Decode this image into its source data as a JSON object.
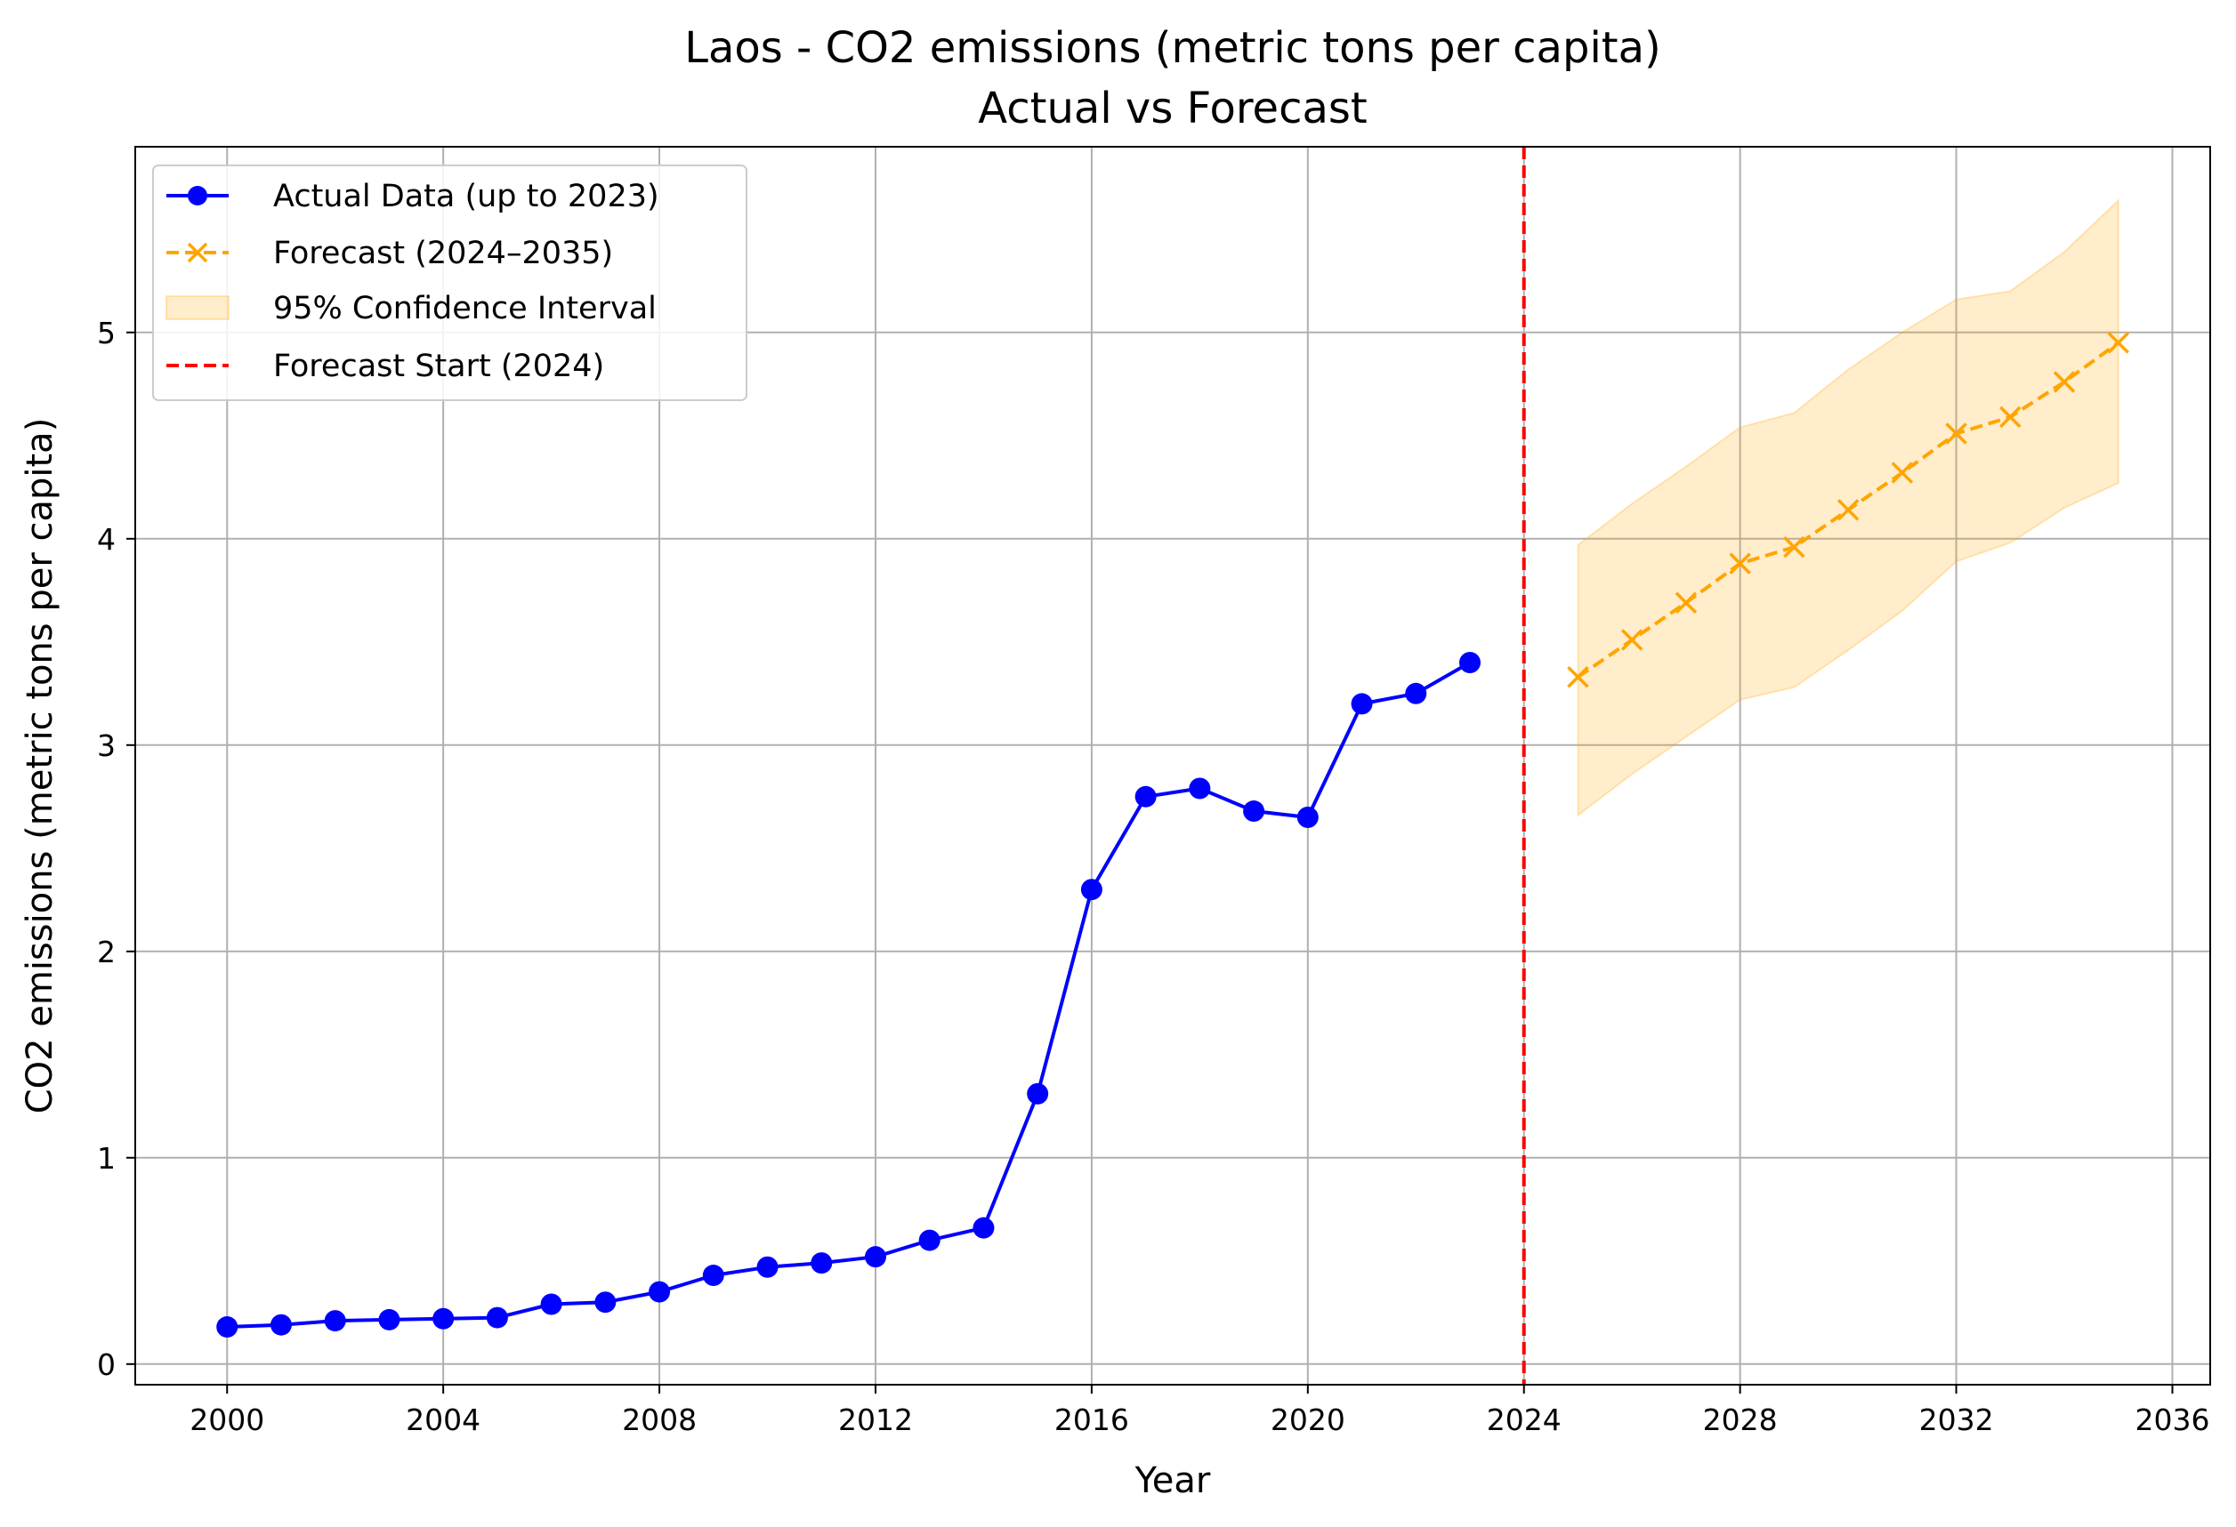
{
  "chart_data": {
    "type": "line",
    "title": "Laos - CO2 emissions (metric tons per capita)",
    "subtitle": "Actual vs Forecast",
    "xlabel": "Year",
    "ylabel": "CO2 emissions (metric tons per capita)",
    "xlim": [
      1998.3,
      2036.7
    ],
    "ylim": [
      -0.1,
      5.9
    ],
    "xticks": [
      "2000",
      "2004",
      "2008",
      "2012",
      "2016",
      "2020",
      "2024",
      "2028",
      "2032",
      "2036"
    ],
    "yticks": [
      "0",
      "1",
      "2",
      "3",
      "4",
      "5"
    ],
    "grid": true,
    "legend_position": "top-left",
    "forecast_start_line": {
      "x": 2024,
      "name": "Forecast Start (2024)",
      "color": "#ff0000"
    },
    "series": [
      {
        "name": "Actual Data (up to 2023)",
        "color": "#0000ff",
        "style": "solid-circle-markers",
        "x": [
          2000,
          2001,
          2002,
          2003,
          2004,
          2005,
          2006,
          2007,
          2008,
          2009,
          2010,
          2011,
          2012,
          2013,
          2014,
          2015,
          2016,
          2017,
          2018,
          2019,
          2020,
          2021,
          2022,
          2023
        ],
        "y": [
          0.18,
          0.19,
          0.21,
          0.215,
          0.22,
          0.225,
          0.29,
          0.3,
          0.35,
          0.43,
          0.47,
          0.49,
          0.52,
          0.6,
          0.66,
          1.31,
          2.3,
          2.75,
          2.79,
          2.68,
          2.65,
          3.2,
          3.25,
          3.4
        ]
      },
      {
        "name": "Forecast (2024–2035)",
        "color": "#ffa500",
        "style": "dashed-x-markers",
        "x": [
          2025,
          2026,
          2027,
          2028,
          2029,
          2030,
          2031,
          2032,
          2033,
          2034,
          2035
        ],
        "y": [
          3.33,
          3.51,
          3.69,
          3.88,
          3.96,
          4.14,
          4.32,
          4.51,
          4.59,
          4.76,
          4.95
        ]
      }
    ],
    "confidence_interval": {
      "name": "95% Confidence Interval",
      "color": "#ffa500",
      "x": [
        2025,
        2026,
        2027,
        2028,
        2029,
        2030,
        2031,
        2032,
        2033,
        2034,
        2035
      ],
      "lower": [
        2.66,
        2.86,
        3.04,
        3.22,
        3.28,
        3.46,
        3.65,
        3.89,
        3.98,
        4.15,
        4.27
      ],
      "upper": [
        3.97,
        4.17,
        4.35,
        4.54,
        4.61,
        4.82,
        5.0,
        5.16,
        5.2,
        5.39,
        5.64
      ]
    }
  }
}
